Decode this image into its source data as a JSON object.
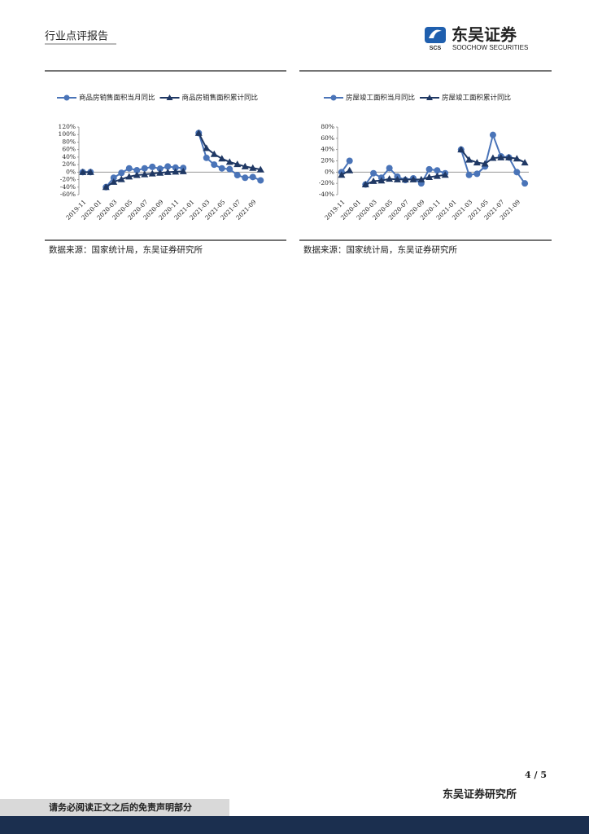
{
  "header": {
    "title": "行业点评报告",
    "logo": "东吴证券",
    "logo_mark": "SCS",
    "logo_en": "SOOCHOW SECURITIES"
  },
  "chart_data": [
    {
      "type": "line",
      "legend": "top",
      "categories": [
        "2019-11",
        null,
        "2020-01",
        null,
        "2020-03",
        null,
        "2020-05",
        null,
        "2020-07",
        null,
        "2020-09",
        null,
        "2020-11",
        null,
        "2021-01",
        null,
        "2021-03",
        null,
        "2021-05",
        null,
        "2021-07",
        null,
        "2021-09",
        null
      ],
      "series": [
        {
          "name": "商品房销售面积当月同比",
          "color": "#4a74b8",
          "marker": "circle",
          "values": [
            0,
            0,
            null,
            -40,
            -15,
            -2,
            10,
            5,
            10,
            14,
            9,
            15,
            12,
            11,
            null,
            104,
            38,
            20,
            10,
            8,
            -8,
            -15,
            -13,
            -22
          ]
        },
        {
          "name": "商品房销售面积累计同比",
          "color": "#1f3864",
          "marker": "triangle",
          "values": [
            0,
            0,
            null,
            -40,
            -26,
            -19,
            -12,
            -8,
            -6,
            -4,
            -2,
            0,
            1,
            2,
            null,
            104,
            64,
            48,
            36,
            27,
            21,
            15,
            11,
            7
          ]
        }
      ],
      "ylim": [
        -60,
        120
      ],
      "yticks": [
        {
          "value": -60,
          "label": "-60%"
        },
        {
          "value": -40,
          "label": "-40%"
        },
        {
          "value": -20,
          "label": "-20%"
        },
        {
          "value": 0,
          "label": "0%"
        },
        {
          "value": 20,
          "label": "20%"
        },
        {
          "value": 40,
          "label": "40%"
        },
        {
          "value": 60,
          "label": "60%"
        },
        {
          "value": 80,
          "label": "80%"
        },
        {
          "value": 100,
          "label": "100%"
        },
        {
          "value": 120,
          "label": "120%"
        }
      ]
    },
    {
      "type": "line",
      "legend": "top",
      "categories": [
        "2019-11",
        null,
        "2020-01",
        null,
        "2020-03",
        null,
        "2020-05",
        null,
        "2020-07",
        null,
        "2020-09",
        null,
        "2020-11",
        null,
        "2021-01",
        null,
        "2021-03",
        null,
        "2021-05",
        null,
        "2021-07",
        null,
        "2021-09",
        null
      ],
      "series": [
        {
          "name": "房屋竣工面积当月同比",
          "color": "#4a74b8",
          "marker": "circle",
          "values": [
            0,
            20,
            null,
            -22,
            -2,
            -10,
            7,
            -8,
            -14,
            -11,
            -20,
            5,
            3,
            -2,
            null,
            40,
            -5,
            -3,
            10,
            66,
            28,
            26,
            0,
            -20
          ]
        },
        {
          "name": "房屋竣工面积累计同比",
          "color": "#1f3864",
          "marker": "triangle",
          "values": [
            -5,
            3,
            null,
            -22,
            -16,
            -15,
            -12,
            -13,
            -13,
            -13,
            -13,
            -9,
            -7,
            -5,
            null,
            40,
            22,
            17,
            15,
            25,
            26,
            26,
            24,
            17
          ]
        }
      ],
      "ylim": [
        -40,
        80
      ],
      "yticks": [
        {
          "value": -40,
          "label": "-40%"
        },
        {
          "value": -20,
          "label": "-20%"
        },
        {
          "value": 0,
          "label": "0%"
        },
        {
          "value": 20,
          "label": "20%"
        },
        {
          "value": 40,
          "label": "40%"
        },
        {
          "value": 60,
          "label": "60%"
        },
        {
          "value": 80,
          "label": "80%"
        }
      ]
    }
  ],
  "sources": [
    "数据来源：国家统计局，东吴证券研究所",
    "数据来源：国家统计局，东吴证券研究所"
  ],
  "footer": {
    "page": "4 / 5",
    "org": "东吴证券研究所",
    "disclaimer": "请务必阅读正文之后的免责声明部分"
  }
}
